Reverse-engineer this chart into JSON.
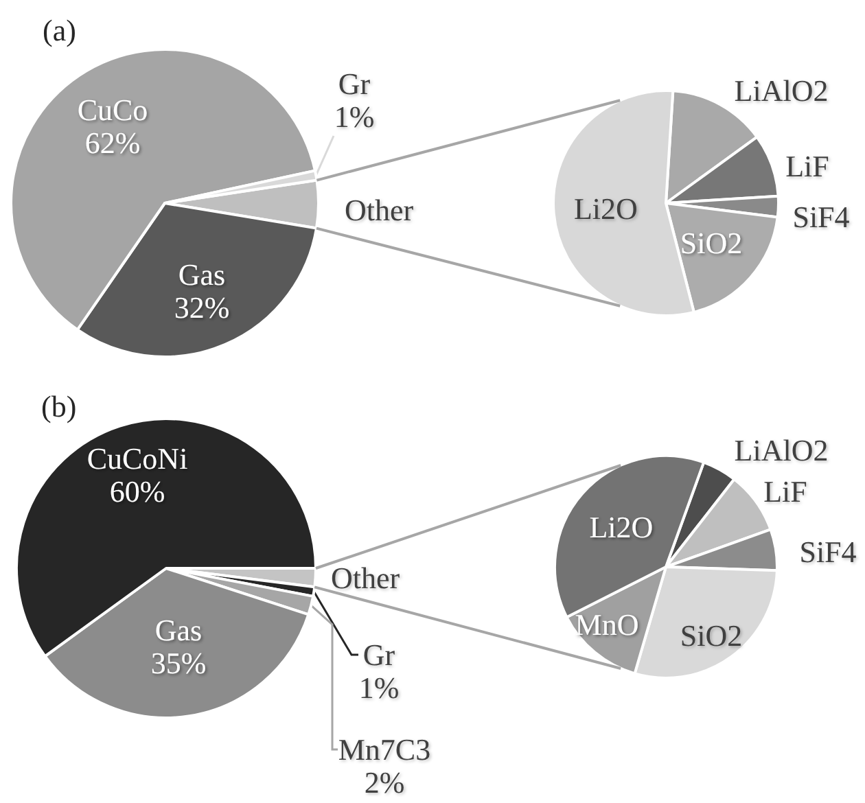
{
  "chart_data": [
    {
      "type": "pie",
      "title": "(a)",
      "categories": [
        "Other",
        "Gas",
        "CuCo",
        "Gr"
      ],
      "values": [
        5,
        32,
        62,
        1
      ],
      "value_labels": [
        null,
        "32%",
        "62%",
        "1%"
      ],
      "colors": [
        "#bfbfbf",
        "#595959",
        "#a5a5a5",
        "#d9d9d9"
      ]
    },
    {
      "type": "pie",
      "categories": [
        "LiAlO2",
        "LiF",
        "SiF4",
        "SiO2",
        "Li2O"
      ],
      "values": [
        14,
        9,
        3,
        19,
        55
      ],
      "colors": [
        "#a9a9a9",
        "#777777",
        "#8a8a8a",
        "#acacac",
        "#d8d8d8"
      ]
    },
    {
      "type": "pie",
      "title": "(b)",
      "categories": [
        "Other",
        "Gr",
        "Mn7C3",
        "Gas",
        "CuCoNi"
      ],
      "values": [
        2,
        1,
        2,
        35,
        60
      ],
      "value_labels": [
        null,
        "1%",
        "2%",
        "35%",
        "60%"
      ],
      "colors": [
        "#c4c4c4",
        "#262626",
        "#a6a6a6",
        "#8c8c8c",
        "#262626"
      ]
    },
    {
      "type": "pie",
      "categories": [
        "LiAlO2",
        "LiF",
        "SiF4",
        "SiO2",
        "MnO",
        "Li2O"
      ],
      "values": [
        5,
        9,
        6,
        29,
        13,
        38
      ],
      "colors": [
        "#4d4d4d",
        "#bfbfbf",
        "#8c8c8c",
        "#d9d9d9",
        "#a0a0a0",
        "#737373"
      ]
    }
  ]
}
